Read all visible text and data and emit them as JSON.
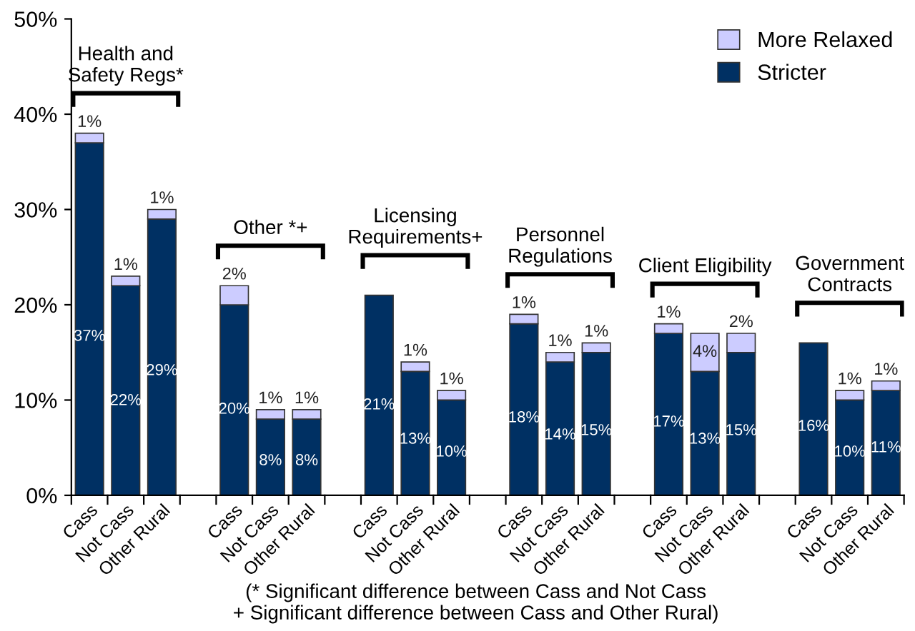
{
  "chart_data": {
    "type": "bar",
    "stacked": true,
    "categories": [
      "Cass",
      "Not Cass",
      "Other Rural",
      null,
      "Cass",
      "Not Cass",
      "Other Rural",
      null,
      "Cass",
      "Not Cass",
      "Other Rural",
      null,
      "Cass",
      "Not Cass",
      "Other Rural",
      null,
      "Cass",
      "Not Cass",
      "Other Rural",
      null,
      "Cass",
      "Not Cass",
      "Other Rural"
    ],
    "series": [
      {
        "name": "Stricter",
        "color": "#003063",
        "values": [
          37,
          22,
          29,
          null,
          20,
          8,
          8,
          null,
          21,
          13,
          10,
          null,
          18,
          14,
          15,
          null,
          17,
          13,
          15,
          null,
          16,
          10,
          11
        ],
        "value_labels": [
          "37%",
          "22%",
          "29%",
          null,
          "20%",
          "8%",
          "8%",
          null,
          "21%",
          "13%",
          "10%",
          null,
          "18%",
          "14%",
          "15%",
          null,
          "17%",
          "13%",
          "15%",
          null,
          "16%",
          "10%",
          "11%"
        ]
      },
      {
        "name": "More Relaxed",
        "color": "#ccccff",
        "values": [
          1,
          1,
          1,
          null,
          2,
          1,
          1,
          null,
          null,
          1,
          1,
          null,
          1,
          1,
          1,
          null,
          1,
          4,
          2,
          null,
          null,
          1,
          1
        ],
        "value_labels": [
          "1%",
          "1%",
          "1%",
          null,
          "2%",
          "1%",
          "1%",
          null,
          null,
          "1%",
          "1%",
          null,
          "1%",
          "1%",
          "1%",
          null,
          "1%",
          "4%",
          "2%",
          null,
          null,
          "1%",
          "1%"
        ]
      }
    ],
    "ylim": [
      0,
      50
    ],
    "yticks": [
      {
        "value": 0,
        "label": "0%"
      },
      {
        "value": 10,
        "label": "10%"
      },
      {
        "value": 20,
        "label": "20%"
      },
      {
        "value": 30,
        "label": "30%"
      },
      {
        "value": 40,
        "label": "40%"
      },
      {
        "value": 50,
        "label": "50%"
      }
    ],
    "grid": false,
    "legend": "top right",
    "annotations": [
      "Health and\nSafety Regs*",
      "Other *+",
      "Licensing\nRequirements+",
      "Personnel\nRegulations",
      "Client Eligibility",
      "Government\nContracts",
      "(* Significant difference between Cass and Not Cass\n+ Significant difference between Cass and Other Rural)"
    ]
  }
}
